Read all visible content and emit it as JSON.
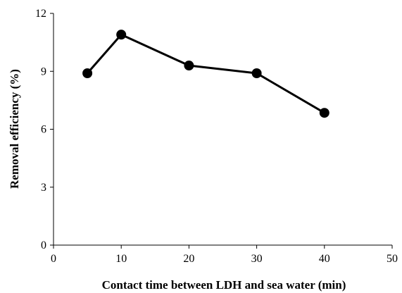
{
  "chart_data": {
    "type": "line",
    "title": "",
    "xlabel": "Contact time between LDH and sea water (min)",
    "ylabel": "Removal efficiency (%)",
    "xlim": [
      0,
      50
    ],
    "ylim": [
      0,
      12
    ],
    "xticks": [
      0,
      10,
      20,
      30,
      40,
      50
    ],
    "yticks": [
      0,
      3,
      6,
      9,
      12
    ],
    "grid": false,
    "legend": "none",
    "series": [
      {
        "x": [
          5,
          10,
          20,
          30,
          40
        ],
        "y": [
          8.9,
          10.9,
          9.3,
          8.9,
          6.85
        ]
      }
    ],
    "colors": {
      "line": "#000000",
      "marker": "#000000",
      "axis": "#000000"
    }
  }
}
